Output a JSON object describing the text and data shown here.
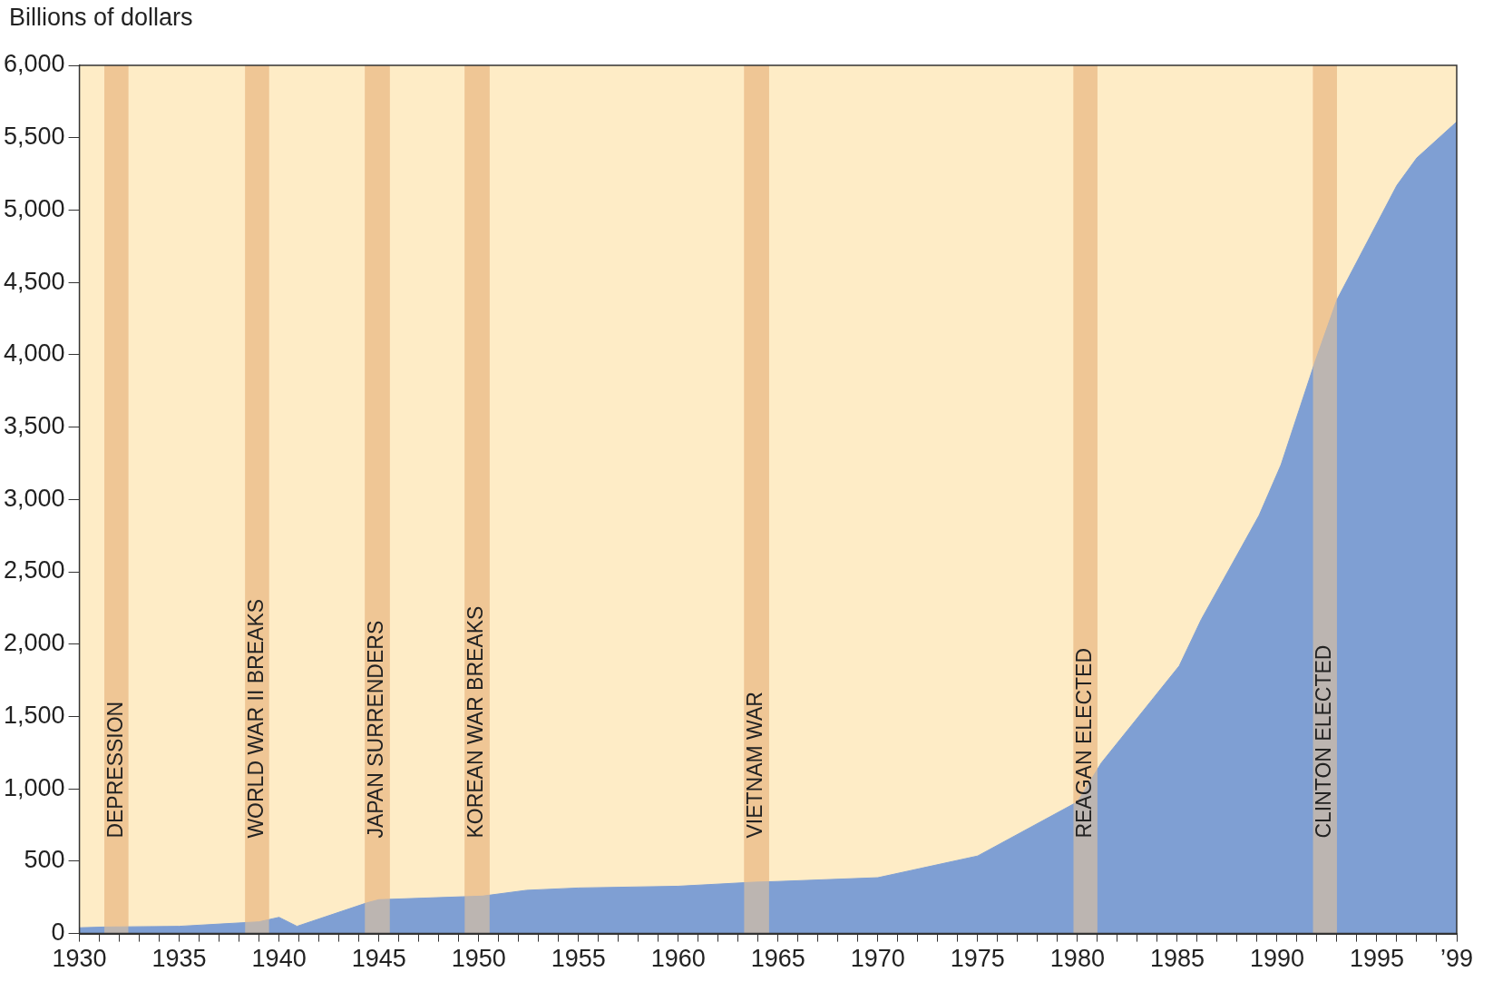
{
  "chart_data": {
    "type": "area",
    "ylabel": "Billions of dollars",
    "x": [
      1930,
      1931.2,
      1935,
      1939,
      1940,
      1940.9,
      1944.4,
      1945,
      1950.2,
      1952.4,
      1955,
      1960,
      1963.8,
      1965,
      1970,
      1975,
      1980,
      1981.2,
      1985.1,
      1986.2,
      1989.1,
      1990.2,
      1991.9,
      1993,
      1996,
      1997,
      1999
    ],
    "series": [
      {
        "color": "#7f9fd3",
        "values": [
          40,
          45,
          50,
          81,
          112,
          50,
          212,
          234,
          259,
          299,
          315,
          327,
          355,
          360,
          386,
          536,
          910,
          1180,
          1850,
          2170,
          2890,
          3240,
          3950,
          4380,
          5170,
          5360,
          5610
        ]
      }
    ],
    "xlim": [
      1930,
      1999
    ],
    "ylim": [
      0,
      6000
    ],
    "xticks": [
      1930,
      {
        "value": 1931,
        "label": null
      },
      {
        "value": 1932,
        "label": null
      },
      {
        "value": 1933,
        "label": null
      },
      {
        "value": 1934,
        "label": null
      },
      1935,
      {
        "value": 1936,
        "label": null
      },
      {
        "value": 1937,
        "label": null
      },
      {
        "value": 1938,
        "label": null
      },
      {
        "value": 1939,
        "label": null
      },
      1940,
      {
        "value": 1941,
        "label": null
      },
      {
        "value": 1942,
        "label": null
      },
      {
        "value": 1943,
        "label": null
      },
      {
        "value": 1944,
        "label": null
      },
      1945,
      {
        "value": 1946,
        "label": null
      },
      {
        "value": 1947,
        "label": null
      },
      {
        "value": 1948,
        "label": null
      },
      {
        "value": 1949,
        "label": null
      },
      1950,
      {
        "value": 1951,
        "label": null
      },
      {
        "value": 1952,
        "label": null
      },
      {
        "value": 1953,
        "label": null
      },
      {
        "value": 1954,
        "label": null
      },
      1955,
      {
        "value": 1956,
        "label": null
      },
      {
        "value": 1957,
        "label": null
      },
      {
        "value": 1958,
        "label": null
      },
      {
        "value": 1959,
        "label": null
      },
      1960,
      {
        "value": 1961,
        "label": null
      },
      {
        "value": 1962,
        "label": null
      },
      {
        "value": 1963,
        "label": null
      },
      {
        "value": 1964,
        "label": null
      },
      1965,
      {
        "value": 1966,
        "label": null
      },
      {
        "value": 1967,
        "label": null
      },
      {
        "value": 1968,
        "label": null
      },
      {
        "value": 1969,
        "label": null
      },
      1970,
      {
        "value": 1971,
        "label": null
      },
      {
        "value": 1972,
        "label": null
      },
      {
        "value": 1973,
        "label": null
      },
      {
        "value": 1974,
        "label": null
      },
      1975,
      {
        "value": 1976,
        "label": null
      },
      {
        "value": 1977,
        "label": null
      },
      {
        "value": 1978,
        "label": null
      },
      {
        "value": 1979,
        "label": null
      },
      1980,
      {
        "value": 1981,
        "label": null
      },
      {
        "value": 1982,
        "label": null
      },
      {
        "value": 1983,
        "label": null
      },
      {
        "value": 1984,
        "label": null
      },
      1985,
      {
        "value": 1986,
        "label": null
      },
      {
        "value": 1987,
        "label": null
      },
      {
        "value": 1988,
        "label": null
      },
      {
        "value": 1989,
        "label": null
      },
      1990,
      {
        "value": 1991,
        "label": null
      },
      {
        "value": 1992,
        "label": null
      },
      {
        "value": 1993,
        "label": null
      },
      {
        "value": 1994,
        "label": null
      },
      1995,
      {
        "value": 1996,
        "label": null
      },
      {
        "value": 1997,
        "label": null
      },
      {
        "value": 1998,
        "label": null
      },
      {
        "value": 1999,
        "label": "’99"
      }
    ],
    "yticks": [
      0,
      500,
      {
        "value": 1000,
        "label": "1,000"
      },
      {
        "value": 1500,
        "label": "1,500"
      },
      {
        "value": 2000,
        "label": "2,000"
      },
      {
        "value": 2500,
        "label": "2,500"
      },
      {
        "value": 3000,
        "label": "3,000"
      },
      {
        "value": 3500,
        "label": "3,500"
      },
      {
        "value": 4000,
        "label": "4,000"
      },
      {
        "value": 4500,
        "label": "4,500"
      },
      {
        "value": 5000,
        "label": "5,000"
      },
      {
        "value": 5500,
        "label": "5,500"
      },
      {
        "value": 6000,
        "label": "6,000"
      }
    ],
    "bands": [
      {
        "axis": "x",
        "from": 1931.25,
        "to": 1932.45,
        "label": "DEPRESSION",
        "color": "#efc696"
      },
      {
        "axis": "x",
        "from": 1938.3,
        "to": 1939.5,
        "label": "WORLD WAR II BREAKS",
        "color": "#efc696"
      },
      {
        "axis": "x",
        "from": 1944.3,
        "to": 1945.55,
        "label": "JAPAN SURRENDERS",
        "color": "#efc696"
      },
      {
        "axis": "x",
        "from": 1949.3,
        "to": 1950.55,
        "label": "KOREAN WAR BREAKS",
        "color": "#efc696"
      },
      {
        "axis": "x",
        "from": 1963.3,
        "to": 1964.55,
        "label": "VIETNAM WAR",
        "color": "#efc696"
      },
      {
        "axis": "x",
        "from": 1979.8,
        "to": 1981.0,
        "label": "REAGAN ELECTED",
        "color": "#efc696"
      },
      {
        "axis": "x",
        "from": 1991.8,
        "to": 1993.0,
        "label": "CLINTON ELECTED",
        "color": "#efc696"
      }
    ]
  }
}
